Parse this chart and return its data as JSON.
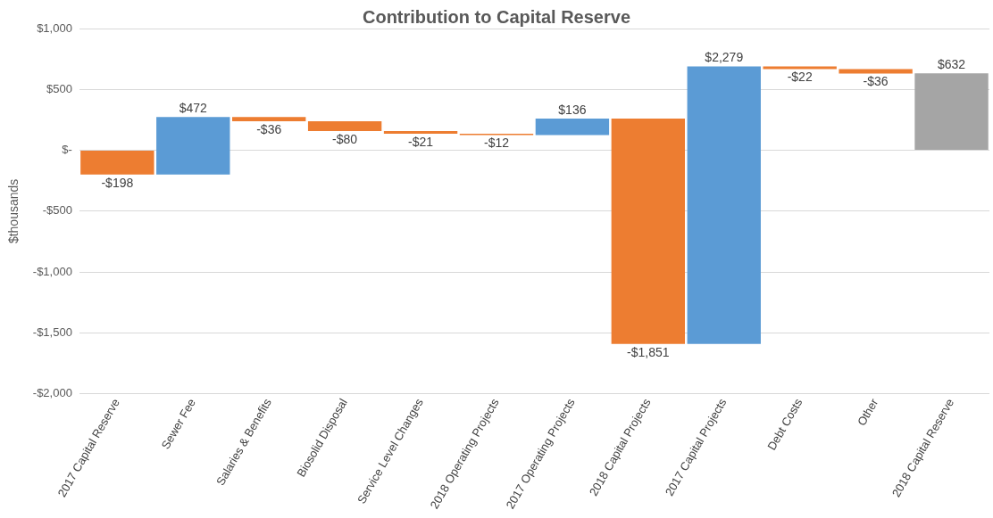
{
  "chart_data": {
    "type": "bar",
    "title": "Contribution to Capital Reserve",
    "ylabel": "$thousands",
    "categories": [
      "2017 Capital Reserve",
      "Sewer Fee",
      "Salaries & Benefits",
      "Biosolid Disposal",
      "Service Level Changes",
      "2018 Operating Projects",
      "2017 Operating Projects",
      "2018 Capital Projects",
      "2017 Capital Projects",
      "Debt Costs",
      "Other",
      "2018 Capital Reserve"
    ],
    "values": [
      -198,
      472,
      -36,
      -80,
      -21,
      -12,
      136,
      -1851,
      2279,
      -22,
      -36,
      632
    ],
    "base": [
      0,
      -198,
      274,
      238,
      158,
      137,
      125,
      261,
      -1590,
      689,
      667,
      0
    ],
    "colors": [
      "#ed7d31",
      "#5b9bd5",
      "#ed7d31",
      "#ed7d31",
      "#ed7d31",
      "#ed7d31",
      "#5b9bd5",
      "#ed7d31",
      "#5b9bd5",
      "#ed7d31",
      "#ed7d31",
      "#a5a5a5"
    ],
    "value_labels": [
      "-$198",
      "$472",
      "-$36",
      "-$80",
      "-$21",
      "-$12",
      "$136",
      "-$1,851",
      "$2,279",
      "-$22",
      "-$36",
      "$632"
    ],
    "ylim": [
      -2000,
      1000
    ],
    "yticks": [
      {
        "value": -2000,
        "label": "-$2,000"
      },
      {
        "value": -1500,
        "label": "-$1,500"
      },
      {
        "value": -1000,
        "label": "-$1,000"
      },
      {
        "value": -500,
        "label": "-$500"
      },
      {
        "value": 0,
        "label": "$-"
      },
      {
        "value": 500,
        "label": "$500"
      },
      {
        "value": 1000,
        "label": "$1,000"
      }
    ],
    "grid": "y",
    "legend": false
  }
}
